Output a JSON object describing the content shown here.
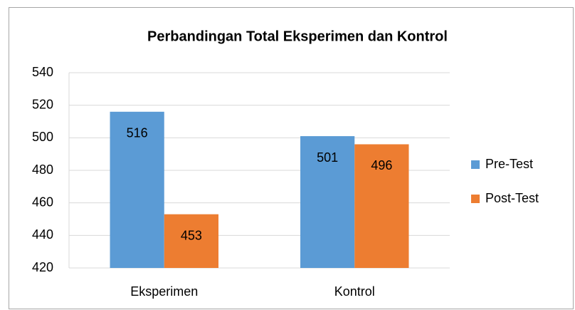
{
  "chart_data": {
    "type": "bar",
    "title": "Perbandingan Total Eksperimen dan Kontrol",
    "categories": [
      "Eksperimen",
      "Kontrol"
    ],
    "series": [
      {
        "name": "Pre-Test",
        "color": "#5b9bd5",
        "values": [
          516,
          501
        ]
      },
      {
        "name": "Post-Test",
        "color": "#ed7d31",
        "values": [
          453,
          496
        ]
      }
    ],
    "ylim": [
      420,
      540
    ],
    "yticks": [
      420,
      440,
      460,
      480,
      500,
      520,
      540
    ],
    "grid": true,
    "legend": "right"
  }
}
